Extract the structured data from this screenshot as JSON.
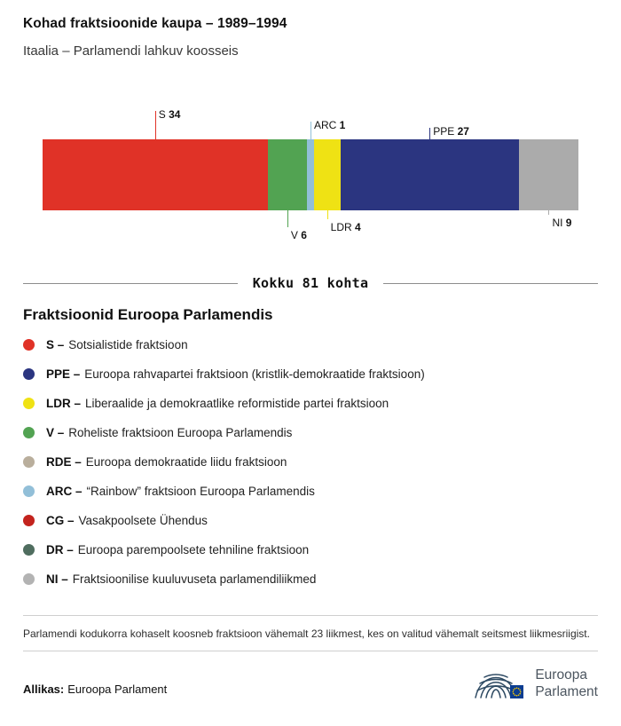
{
  "header": {
    "title": "Kohad fraktsioonide kaupa – 1989–1994",
    "subtitle": "Itaalia – Parlamendi lahkuv koosseis"
  },
  "chart_data": {
    "type": "bar",
    "variant": "stacked-horizontal",
    "title": "Kohad fraktsioonide kaupa – 1989–1994",
    "total": 81,
    "total_label": "Kokku 81 kohta",
    "segments": [
      {
        "name": "S",
        "value": 34,
        "color": "#E03227",
        "label_side": "top",
        "line_len": 32
      },
      {
        "name": "V",
        "value": 6,
        "color": "#52A352",
        "label_side": "bottom",
        "line_len": 19
      },
      {
        "name": "ARC",
        "value": 1,
        "color": "#92BFD8",
        "label_side": "top",
        "line_len": 20
      },
      {
        "name": "LDR",
        "value": 4,
        "color": "#EFE214",
        "label_side": "bottom",
        "line_len": 10
      },
      {
        "name": "PPE",
        "value": 27,
        "color": "#2B3580",
        "label_side": "top",
        "line_len": 13
      },
      {
        "name": "NI",
        "value": 9,
        "color": "#ABABAB",
        "label_side": "bottom",
        "line_len": 5
      }
    ]
  },
  "legend": {
    "title": "Fraktsioonid Euroopa Parlamendis",
    "items": [
      {
        "abbr_label": "S –",
        "color": "#E03227",
        "desc": "Sotsialistide fraktsioon"
      },
      {
        "abbr_label": "PPE –",
        "color": "#2B3580",
        "desc": "Euroopa rahvapartei fraktsioon (kristlik-demokraatide fraktsioon)"
      },
      {
        "abbr_label": "LDR –",
        "color": "#EFE214",
        "desc": "Liberaalide ja demokraatlike reformistide partei fraktsioon"
      },
      {
        "abbr_label": "V –",
        "color": "#52A352",
        "desc": "Roheliste fraktsioon Euroopa Parlamendis"
      },
      {
        "abbr_label": "RDE –",
        "color": "#B9AE9C",
        "desc": "Euroopa demokraatide liidu fraktsioon"
      },
      {
        "abbr_label": "ARC –",
        "color": "#92BFD8",
        "desc": "“Rainbow” fraktsioon Euroopa Parlamendis"
      },
      {
        "abbr_label": "CG –",
        "color": "#C3231D",
        "desc": "Vasakpoolsete Ühendus"
      },
      {
        "abbr_label": "DR –",
        "color": "#4F6D5F",
        "desc": "Euroopa parempoolsete tehniline fraktsioon"
      },
      {
        "abbr_label": "NI –",
        "color": "#B3B3B3",
        "desc": "Fraktsioonilise kuuluvuseta parlamendiliikmed"
      }
    ]
  },
  "footnote": "Parlamendi kodukorra kohaselt koosneb fraktsioon vähemalt 23 liikmest, kes on valitud vähemalt seitsmest liikmesriigist.",
  "source": {
    "label": "Allikas:",
    "text": "Euroopa Parlament"
  },
  "logo": {
    "line1": "Euroopa",
    "line2": "Parlament",
    "color": "#2E4A63",
    "flag_blue": "#0B3D91",
    "star_yellow": "#FFCC00"
  }
}
